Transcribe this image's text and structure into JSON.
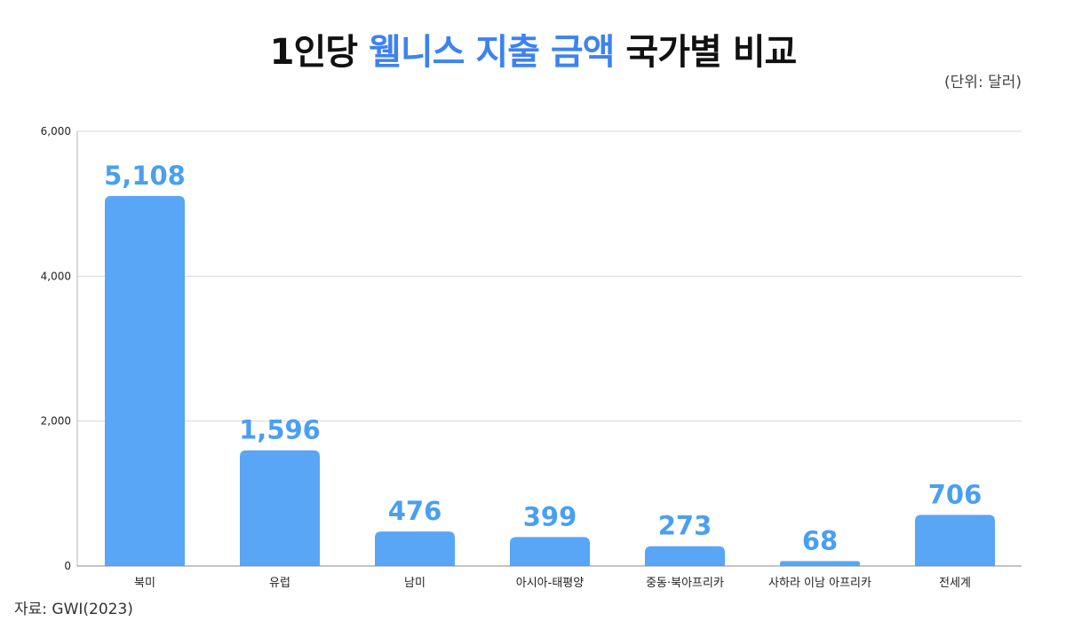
{
  "title": {
    "prefix": "1인당 ",
    "highlight": "웰니스 지출 금액",
    "suffix": " 국가별 비교"
  },
  "unit_note": "(단위: 달러)",
  "source": "자료: GWI(2023)",
  "colors": {
    "bar": "#58a6f5",
    "data_label": "#4a9ff0",
    "title_accent": "#3d82f0",
    "grid": "#d9d9d9"
  },
  "chart_data": {
    "type": "bar",
    "categories": [
      "북미",
      "유럽",
      "남미",
      "아시아-태평양",
      "중동·북아프리카",
      "사하라 이남 아프리카",
      "전세계"
    ],
    "values": [
      5108,
      1596,
      476,
      399,
      273,
      68,
      706
    ],
    "value_labels": [
      "5,108",
      "1,596",
      "476",
      "399",
      "273",
      "68",
      "706"
    ],
    "yticks": [
      0,
      2000,
      4000,
      6000
    ],
    "ytick_labels": [
      "0",
      "2,000",
      "4,000",
      "6,000"
    ],
    "ylim": [
      0,
      6000
    ],
    "grid": true,
    "legend": "none"
  }
}
